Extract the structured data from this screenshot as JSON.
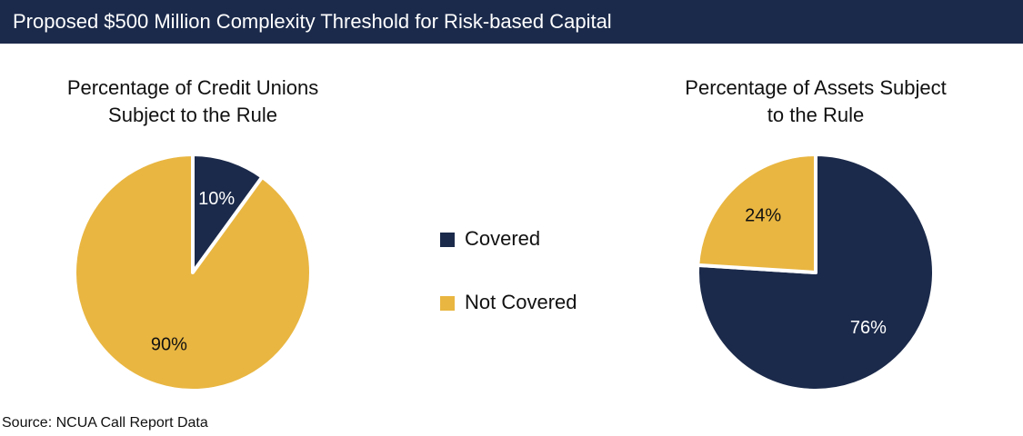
{
  "title": "Proposed $500 Million Complexity Threshold for Risk-based Capital",
  "source": "Source: NCUA Call Report Data",
  "chart_data": [
    {
      "type": "pie",
      "title": [
        "Percentage of Credit Unions",
        "Subject to the Rule"
      ],
      "categories": [
        "Covered",
        "Not Covered"
      ],
      "values": [
        10,
        90
      ],
      "value_labels": [
        "10%",
        "90%"
      ],
      "colors": [
        "#1b2a4b",
        "#e9b641"
      ]
    },
    {
      "type": "pie",
      "title": [
        "Percentage of Assets Subject",
        "to the Rule"
      ],
      "categories": [
        "Covered",
        "Not Covered"
      ],
      "values": [
        76,
        24
      ],
      "value_labels": [
        "76%",
        "24%"
      ],
      "colors": [
        "#1b2a4b",
        "#e9b641"
      ]
    }
  ]
}
